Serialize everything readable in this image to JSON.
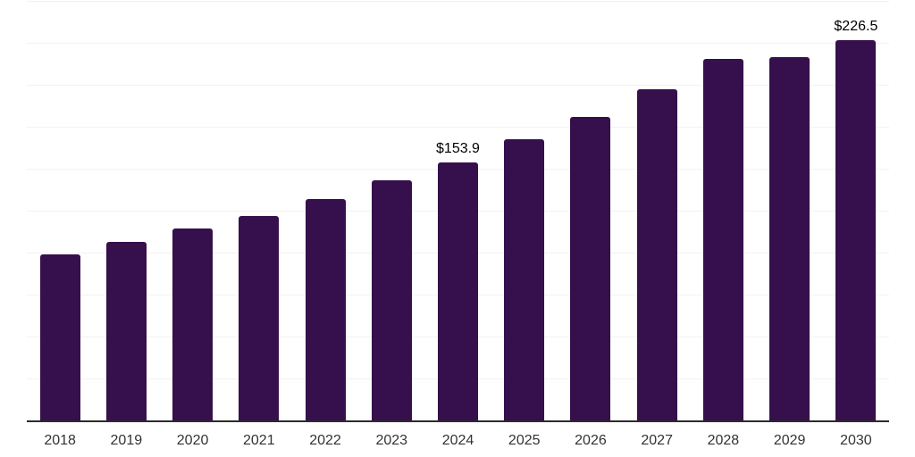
{
  "chart_data": {
    "type": "bar",
    "title": "",
    "xlabel": "",
    "ylabel": "",
    "categories": [
      "2018",
      "2019",
      "2020",
      "2021",
      "2022",
      "2023",
      "2024",
      "2025",
      "2026",
      "2027",
      "2028",
      "2029",
      "2030"
    ],
    "values": [
      98.9,
      106.4,
      114.4,
      121.9,
      131.9,
      143.0,
      153.9,
      167.5,
      180.9,
      197.3,
      215.5,
      216.5,
      226.5
    ],
    "point_labels": {
      "2024": "$153.9",
      "2030": "$226.5"
    },
    "ylim": [
      0,
      250
    ],
    "grid_step": 25,
    "grid": true,
    "y_tick_labels_visible": false,
    "legend_position": "none",
    "bar_color": "#35104D",
    "grid_color": "#F2F2F2",
    "axis_color": "#2B2B2B",
    "tick_label_color": "#333333",
    "value_label_color": "#000000"
  }
}
